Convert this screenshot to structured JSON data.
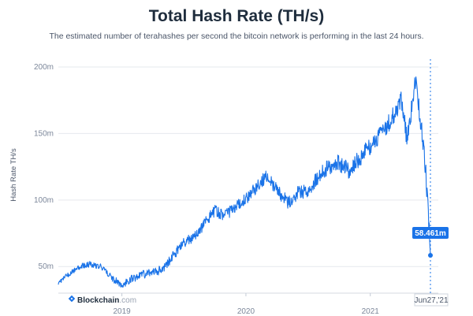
{
  "header": {
    "title": "Total Hash Rate (TH/s)",
    "subtitle": "The estimated number of terahashes per second the bitcoin network is performing in the last 24 hours."
  },
  "watermark": {
    "brand": "Blockchain",
    "suffix": ".com"
  },
  "colors": {
    "line": "#1a73e8",
    "tooltip_bg": "#1a73e8",
    "grid": "#e6e9ee"
  },
  "chart_data": {
    "type": "line",
    "title": "Total Hash Rate (TH/s)",
    "subtitle": "The estimated number of terahashes per second the bitcoin network is performing in the last 24 hours.",
    "xlabel": "",
    "ylabel": "Hash Rate TH/s",
    "y_ticks": [
      "50m",
      "100m",
      "150m",
      "200m"
    ],
    "y_tick_values": [
      50,
      100,
      150,
      200
    ],
    "x_ticks": [
      "2019",
      "2020",
      "2021"
    ],
    "x_tick_values": [
      "2019-01-01",
      "2020-01-01",
      "2021-01-01"
    ],
    "xlim": [
      "2018-06-28",
      "2021-06-27"
    ],
    "ylim": [
      30,
      200
    ],
    "grid": true,
    "series": [
      {
        "x": [
          "2018-06-28",
          "2018-08-01",
          "2018-09-01",
          "2018-10-01",
          "2018-11-01",
          "2018-11-20",
          "2018-12-10",
          "2019-01-01",
          "2019-02-01",
          "2019-03-01",
          "2019-04-01",
          "2019-05-01",
          "2019-06-01",
          "2019-07-01",
          "2019-08-01",
          "2019-09-01",
          "2019-10-01",
          "2019-11-01",
          "2019-12-01",
          "2020-01-01",
          "2020-02-01",
          "2020-03-01",
          "2020-04-01",
          "2020-05-01",
          "2020-06-01",
          "2020-07-01",
          "2020-08-01",
          "2020-09-01",
          "2020-10-01",
          "2020-11-01",
          "2020-12-01",
          "2021-01-01",
          "2021-02-01",
          "2021-03-01",
          "2021-04-01",
          "2021-04-20",
          "2021-05-01",
          "2021-05-13",
          "2021-06-01",
          "2021-06-15",
          "2021-06-27"
        ],
        "values": [
          38,
          45,
          50,
          52,
          50,
          45,
          40,
          36,
          41,
          44,
          45,
          48,
          58,
          68,
          72,
          82,
          92,
          88,
          95,
          100,
          110,
          118,
          108,
          98,
          105,
          108,
          118,
          125,
          128,
          122,
          132,
          140,
          150,
          160,
          175,
          145,
          165,
          190,
          155,
          115,
          58.461
        ]
      }
    ],
    "current_date_label": "Jun27,'21",
    "current_value_label": "58.461m"
  }
}
